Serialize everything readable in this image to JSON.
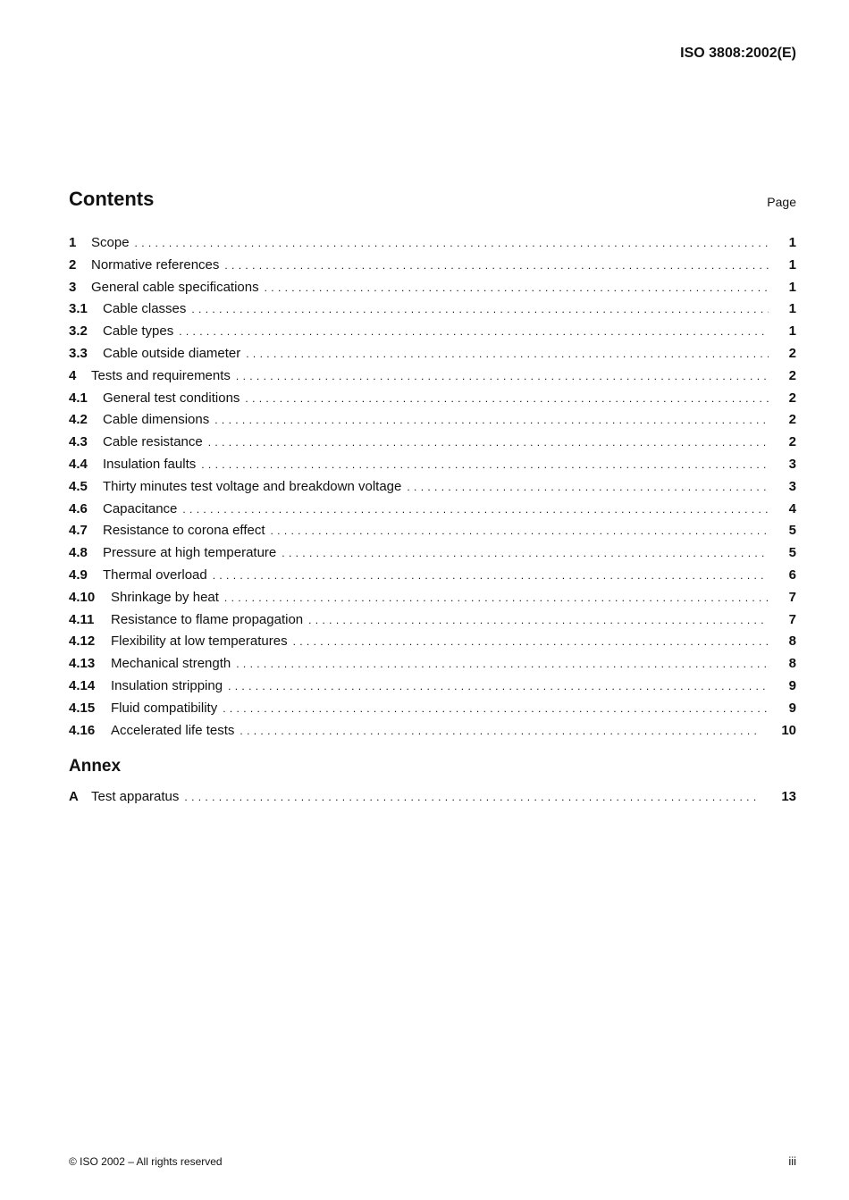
{
  "header": {
    "doc_id": "ISO 3808:2002(E)"
  },
  "contents": {
    "title": "Contents",
    "page_label": "Page",
    "entries": [
      {
        "num": "1",
        "label": "Scope",
        "page": "1",
        "level": 1
      },
      {
        "num": "2",
        "label": "Normative references",
        "page": "1",
        "level": 1
      },
      {
        "num": "3",
        "label": "General cable specifications",
        "page": "1",
        "level": 1
      },
      {
        "num": "3.1",
        "label": "Cable classes",
        "page": "1",
        "level": 2
      },
      {
        "num": "3.2",
        "label": "Cable types",
        "page": "1",
        "level": 2
      },
      {
        "num": "3.3",
        "label": "Cable outside diameter",
        "page": "2",
        "level": 2
      },
      {
        "num": "4",
        "label": "Tests and requirements",
        "page": "2",
        "level": 1
      },
      {
        "num": "4.1",
        "label": "General test conditions",
        "page": "2",
        "level": 2
      },
      {
        "num": "4.2",
        "label": "Cable dimensions",
        "page": "2",
        "level": 2
      },
      {
        "num": "4.3",
        "label": "Cable resistance",
        "page": "2",
        "level": 2
      },
      {
        "num": "4.4",
        "label": "Insulation faults",
        "page": "3",
        "level": 2
      },
      {
        "num": "4.5",
        "label": "Thirty minutes test voltage and breakdown voltage",
        "page": "3",
        "level": 2
      },
      {
        "num": "4.6",
        "label": "Capacitance",
        "page": "4",
        "level": 2
      },
      {
        "num": "4.7",
        "label": "Resistance to corona effect",
        "page": "5",
        "level": 2
      },
      {
        "num": "4.8",
        "label": "Pressure at high temperature",
        "page": "5",
        "level": 2
      },
      {
        "num": "4.9",
        "label": "Thermal overload",
        "page": "6",
        "level": 2
      },
      {
        "num": "4.10",
        "label": "Shrinkage by heat",
        "page": "7",
        "level": 3
      },
      {
        "num": "4.11",
        "label": "Resistance to flame propagation",
        "page": "7",
        "level": 3
      },
      {
        "num": "4.12",
        "label": "Flexibility at low temperatures",
        "page": "8",
        "level": 3
      },
      {
        "num": "4.13",
        "label": "Mechanical strength",
        "page": "8",
        "level": 3
      },
      {
        "num": "4.14",
        "label": "Insulation stripping",
        "page": "9",
        "level": 3
      },
      {
        "num": "4.15",
        "label": "Fluid compatibility",
        "page": "9",
        "level": 3
      },
      {
        "num": "4.16",
        "label": "Accelerated life tests",
        "page": "10",
        "level": 3
      }
    ]
  },
  "annex": {
    "title": "Annex",
    "entries": [
      {
        "num": "A",
        "label": "Test apparatus",
        "page": "13",
        "level": 1
      }
    ]
  },
  "footer": {
    "copyright": "© ISO 2002 – All rights reserved",
    "page": "iii"
  }
}
